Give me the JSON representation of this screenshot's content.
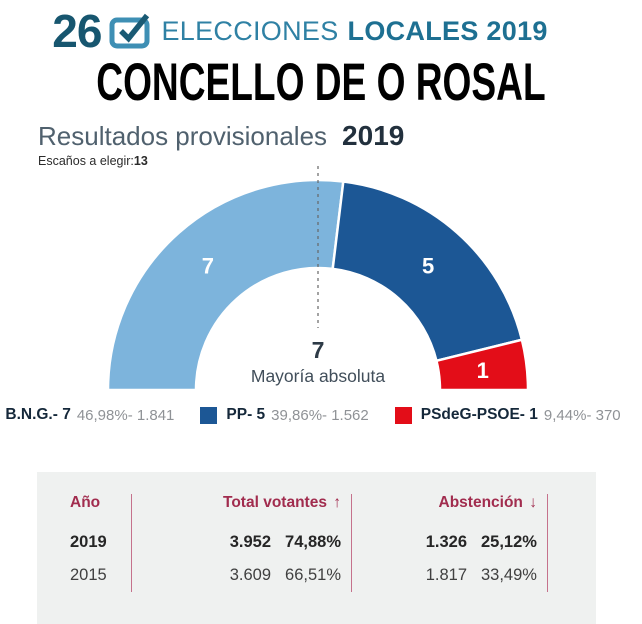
{
  "header": {
    "day_number": "26",
    "title_regular": "ELECCIONES",
    "title_bold": "LOCALES 2019"
  },
  "page_title": "CONCELLO DE O ROSAL",
  "results": {
    "subtitle": "Resultados provisionales",
    "year": "2019",
    "seats_label": "Escaños a elegir:",
    "seats_total": "13"
  },
  "chart_data": {
    "type": "semicircle-donut",
    "total_seats": 13,
    "majority": {
      "value": "7",
      "label": "Mayoría absoluta"
    },
    "series": [
      {
        "party": "B.N.G.",
        "seats": 7,
        "percent": "46,98%",
        "votes": "1.841",
        "color": "#7db4dc"
      },
      {
        "party": "PP",
        "seats": 5,
        "percent": "39,86%",
        "votes": "1.562",
        "color": "#1c5795"
      },
      {
        "party": "PSdeG-PSOE",
        "seats": 1,
        "percent": "9,44%",
        "votes": "370",
        "color": "#e30d18"
      }
    ]
  },
  "legend": {
    "items": [
      {
        "label": "B.N.G.- 7",
        "detail": "46,98%- 1.841",
        "color": "#7db4dc"
      },
      {
        "label": "PP- 5",
        "detail": "39,86%- 1.562",
        "color": "#1c5795"
      },
      {
        "label": "PSdeG-PSOE- 1",
        "detail": "9,44%- 370",
        "color": "#e30d18"
      }
    ]
  },
  "history_table": {
    "columns": [
      "Año",
      "Total votantes",
      "Abstención"
    ],
    "sort_up": "↑",
    "sort_down": "↓",
    "rows": [
      {
        "year": "2019",
        "total_votes": "3.952",
        "total_pct": "74,88%",
        "abstention": "1.326",
        "abstention_pct": "25,12%"
      },
      {
        "year": "2015",
        "total_votes": "3.609",
        "total_pct": "66,51%",
        "abstention": "1.817",
        "abstention_pct": "33,49%"
      }
    ]
  },
  "colors": {
    "accent_teal_dark": "#17566f",
    "accent_teal": "#2f81a4",
    "header_maroon": "#a12c4e",
    "separator_pink": "#c5728c",
    "table_bg": "#eff1f0"
  }
}
